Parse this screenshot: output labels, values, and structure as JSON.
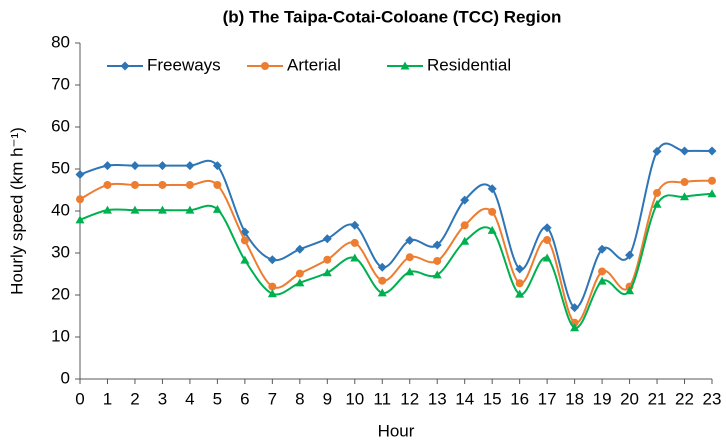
{
  "chart_data": {
    "type": "line",
    "title": "(b) The Taipa-Cotai-Coloane (TCC) Region",
    "x_label": "Hour",
    "y_label": "Hourly speed (km h⁻¹)",
    "x": [
      0,
      1,
      2,
      3,
      4,
      5,
      6,
      7,
      8,
      9,
      10,
      11,
      12,
      13,
      14,
      15,
      16,
      17,
      18,
      19,
      20,
      21,
      22,
      23
    ],
    "xlim": [
      0,
      23
    ],
    "xticks": [
      0,
      1,
      2,
      3,
      4,
      5,
      6,
      7,
      8,
      9,
      10,
      11,
      12,
      13,
      14,
      15,
      16,
      17,
      18,
      19,
      20,
      21,
      22,
      23
    ],
    "ylim": [
      0,
      80
    ],
    "yticks": [
      0,
      10,
      20,
      30,
      40,
      50,
      60,
      70,
      80
    ],
    "smooth": true,
    "legend": "top",
    "series": [
      {
        "name": "Freeways",
        "color": "#2e75b6",
        "marker": "diamond",
        "values": [
          48.7,
          50.8,
          50.8,
          50.8,
          50.8,
          50.8,
          35,
          28.4,
          30.9,
          33.4,
          36.6,
          26.6,
          33,
          31.9,
          42.6,
          45.3,
          26.2,
          36,
          17,
          30.9,
          29.5,
          54.2,
          54.3,
          54.3
        ]
      },
      {
        "name": "Arterial",
        "color": "#ed7d31",
        "marker": "circle",
        "values": [
          42.8,
          46.2,
          46.2,
          46.2,
          46.2,
          46.2,
          33,
          22,
          25.1,
          28.4,
          32.4,
          23.4,
          29,
          28.1,
          36.6,
          39.8,
          22.8,
          33.1,
          13.4,
          25.6,
          22,
          44.3,
          46.9,
          47.2
        ]
      },
      {
        "name": "Residential",
        "color": "#00b050",
        "marker": "triangle",
        "values": [
          37.9,
          40.2,
          40.2,
          40.2,
          40.2,
          40.4,
          28.3,
          20.3,
          22.9,
          25.3,
          28.8,
          20.5,
          25.5,
          24.8,
          32.8,
          35.4,
          20.2,
          28.8,
          12.2,
          23.3,
          21,
          41.6,
          43.4,
          44.1
        ]
      }
    ]
  }
}
